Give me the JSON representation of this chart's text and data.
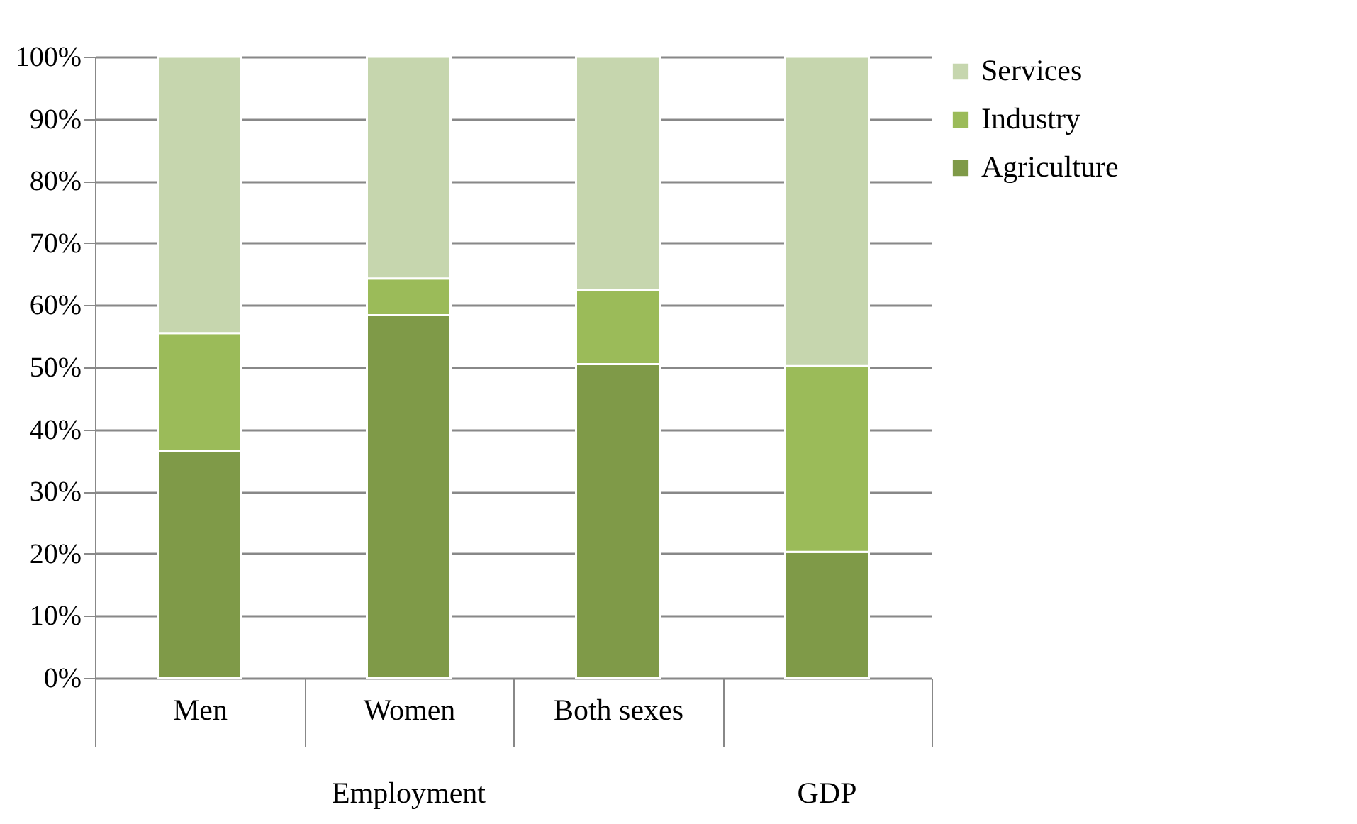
{
  "chart_data": {
    "type": "bar",
    "stacked": true,
    "categories": [
      "Men",
      "Women",
      "Both sexes",
      null
    ],
    "series": [
      {
        "name": "Agriculture",
        "color": "#7f9a48",
        "values": [
          36.6,
          58.4,
          50.5,
          20.3
        ]
      },
      {
        "name": "Industry",
        "color": "#9bbb59",
        "values": [
          18.9,
          5.9,
          11.9,
          29.9
        ]
      },
      {
        "name": "Services",
        "color": "#c6d6ae",
        "values": [
          44.5,
          35.7,
          37.6,
          49.8
        ]
      }
    ],
    "ylim": [
      0,
      100
    ],
    "yticks": [
      {
        "value": 0,
        "label": "0%"
      },
      {
        "value": 10,
        "label": "10%"
      },
      {
        "value": 20,
        "label": "20%"
      },
      {
        "value": 30,
        "label": "30%"
      },
      {
        "value": 40,
        "label": "40%"
      },
      {
        "value": 50,
        "label": "50%"
      },
      {
        "value": 60,
        "label": "60%"
      },
      {
        "value": 70,
        "label": "70%"
      },
      {
        "value": 80,
        "label": "80%"
      },
      {
        "value": 90,
        "label": "90%"
      },
      {
        "value": 100,
        "label": "100%"
      }
    ],
    "grid": "y",
    "legend": "right",
    "annotations": [
      "Employment",
      "GDP"
    ]
  }
}
